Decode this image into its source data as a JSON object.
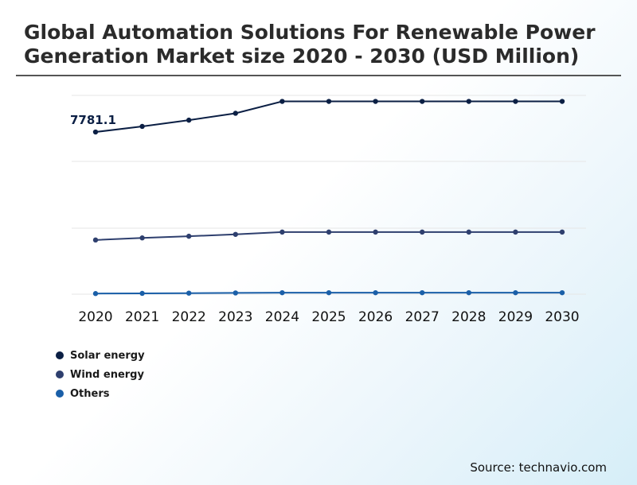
{
  "chart_data": {
    "type": "line",
    "title": "Global Automation Solutions For Renewable Power Generation Market size 2020 - 2030 (USD Million)",
    "x": [
      "2020",
      "2021",
      "2022",
      "2023",
      "2024",
      "2025",
      "2026",
      "2027",
      "2028",
      "2029",
      "2030"
    ],
    "series": [
      {
        "name": "Solar energy",
        "color": "#0b1f44",
        "values": [
          7781.1,
          8050,
          8350,
          8680,
          9250,
          9250,
          9250,
          9250,
          9250,
          9250,
          9250
        ]
      },
      {
        "name": "Wind energy",
        "color": "#2e3f6e",
        "values": [
          2600,
          2700,
          2780,
          2870,
          2980,
          2980,
          2980,
          2980,
          2980,
          2980,
          2980
        ]
      },
      {
        "name": "Others",
        "color": "#1a5fa8",
        "values": [
          30,
          40,
          50,
          60,
          70,
          70,
          70,
          70,
          70,
          70,
          70
        ]
      }
    ],
    "data_labels": [
      {
        "series": 0,
        "index": 0,
        "text": "7781.1"
      }
    ],
    "ylim": [
      0,
      10300
    ],
    "y_axis_labels": false,
    "grid": true,
    "legend_position": "bottom-left"
  },
  "source": "Source: technavio.com"
}
